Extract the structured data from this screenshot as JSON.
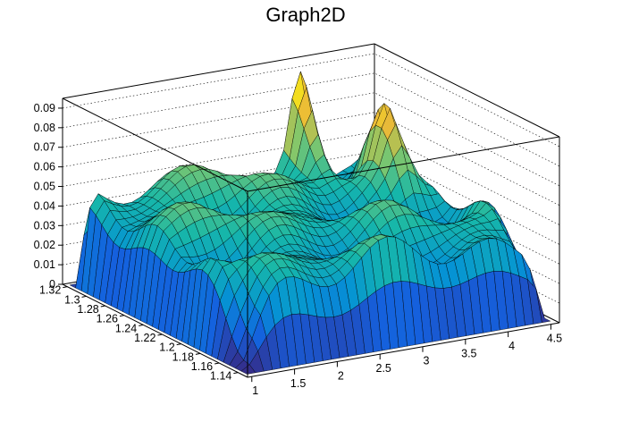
{
  "chart_data": {
    "type": "surface",
    "title": "Graph2D",
    "xlabel": "",
    "ylabel": "",
    "zlabel": "",
    "x_ticks": [
      "1",
      "1.5",
      "2",
      "2.5",
      "3",
      "3.5",
      "4",
      "4.5"
    ],
    "y_ticks": [
      "1.14",
      "1.16",
      "1.18",
      "1.2",
      "1.22",
      "1.24",
      "1.26",
      "1.28",
      "1.3",
      "1.32"
    ],
    "z_ticks": [
      "0",
      "0.01",
      "0.02",
      "0.03",
      "0.04",
      "0.05",
      "0.06",
      "0.07",
      "0.08",
      "0.09"
    ],
    "xlim": [
      0.95,
      4.6
    ],
    "ylim": [
      1.13,
      1.325
    ],
    "zlim": [
      0,
      0.095
    ],
    "grid": true,
    "colormap": "parula",
    "peaks": [
      {
        "x": 3.55,
        "y": 1.31,
        "z": 0.09
      },
      {
        "x": 4.05,
        "y": 1.27,
        "z": 0.075
      },
      {
        "x": 4.5,
        "y": 1.2,
        "z": 0.055
      }
    ]
  }
}
